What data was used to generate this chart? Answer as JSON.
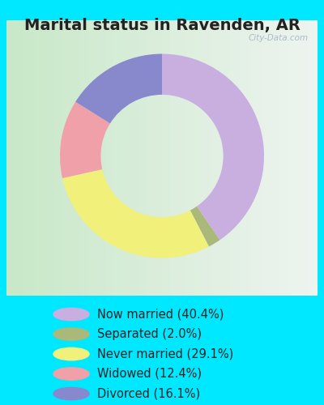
{
  "title": "Marital status in Ravenden, AR",
  "slices": [
    {
      "label": "Now married (40.4%)",
      "value": 40.4,
      "color": "#c9aee0"
    },
    {
      "label": "Separated (2.0%)",
      "value": 2.0,
      "color": "#aab87a"
    },
    {
      "label": "Never married (29.1%)",
      "value": 29.1,
      "color": "#f0f07a"
    },
    {
      "label": "Widowed (12.4%)",
      "value": 12.4,
      "color": "#f0a0a8"
    },
    {
      "label": "Divorced (16.1%)",
      "value": 16.1,
      "color": "#8888cc"
    }
  ],
  "outer_bg": "#00e8ff",
  "chart_bg_left": "#c8e8c8",
  "chart_bg_right": "#eef4f0",
  "title_fontsize": 14,
  "legend_fontsize": 10.5,
  "watermark": "City-Data.com",
  "startangle": 90
}
